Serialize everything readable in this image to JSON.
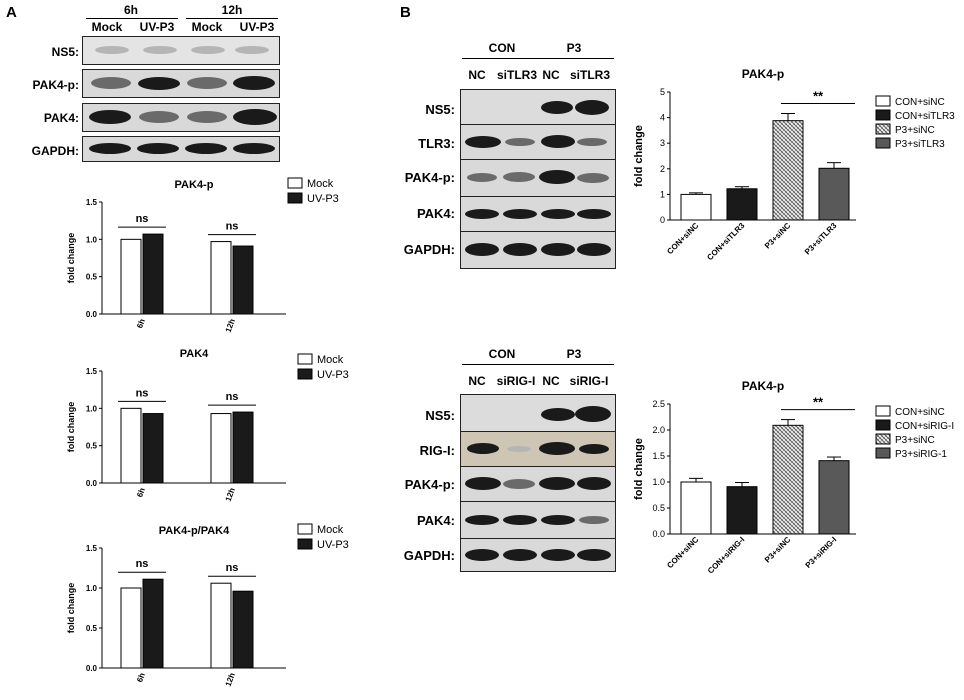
{
  "panelA": {
    "letter": "A",
    "timepoints": [
      "6h",
      "12h"
    ],
    "lanes": [
      "Mock",
      "UV-P3",
      "Mock",
      "UV-P3"
    ],
    "blots": [
      "NS5:",
      "PAK4-p:",
      "PAK4:",
      "GAPDH:"
    ]
  },
  "panelB": {
    "letter": "B",
    "top": {
      "groups": [
        "CON",
        "P3"
      ],
      "lanes": [
        "NC",
        "siTLR3",
        "NC",
        "siTLR3"
      ],
      "blots": [
        "NS5:",
        "TLR3:",
        "PAK4-p:",
        "PAK4:",
        "GAPDH:"
      ]
    },
    "bottom": {
      "groups": [
        "CON",
        "P3"
      ],
      "lanes": [
        "NC",
        "siRIG-I",
        "NC",
        "siRIG-I"
      ],
      "blots": [
        "NS5:",
        "RIG-I:",
        "PAK4-p:",
        "PAK4:",
        "GAPDH:"
      ]
    }
  },
  "chart_data": [
    {
      "type": "bar",
      "title": "PAK4-p",
      "ylabel": "fold change",
      "categories": [
        "6h",
        "12h"
      ],
      "series": [
        {
          "name": "Mock",
          "values": [
            1.0,
            0.97
          ]
        },
        {
          "name": "UV-P3",
          "values": [
            1.07,
            0.91
          ]
        }
      ],
      "ylim": [
        0,
        1.5
      ],
      "yticks": [
        "0.0",
        "0.5",
        "1.0",
        "1.5"
      ],
      "annotations": [
        "ns",
        "ns"
      ],
      "legend": "right"
    },
    {
      "type": "bar",
      "title": "PAK4",
      "ylabel": "fold change",
      "categories": [
        "6h",
        "12h"
      ],
      "series": [
        {
          "name": "Mock",
          "values": [
            1.0,
            0.93
          ]
        },
        {
          "name": "UV-P3",
          "values": [
            0.93,
            0.95
          ]
        }
      ],
      "ylim": [
        0,
        1.5
      ],
      "yticks": [
        "0.0",
        "0.5",
        "1.0",
        "1.5"
      ],
      "annotations": [
        "ns",
        "ns"
      ],
      "legend": "right"
    },
    {
      "type": "bar",
      "title": "PAK4-p/PAK4",
      "ylabel": "fold change",
      "categories": [
        "6h",
        "12h"
      ],
      "series": [
        {
          "name": "Mock",
          "values": [
            1.0,
            1.06
          ]
        },
        {
          "name": "UV-P3",
          "values": [
            1.11,
            0.96
          ]
        }
      ],
      "ylim": [
        0,
        1.5
      ],
      "yticks": [
        "0.0",
        "0.5",
        "1.0",
        "1.5"
      ],
      "annotations": [
        "ns",
        "ns"
      ],
      "legend": "right"
    },
    {
      "type": "bar",
      "title": "PAK4-p",
      "ylabel": "fold change",
      "categories": [
        "CON+siNC",
        "CON+siTLR3",
        "P3+siNC",
        "P3+siTLR3"
      ],
      "values": [
        1.0,
        1.22,
        3.88,
        2.02
      ],
      "errors": [
        0.06,
        0.08,
        0.28,
        0.22
      ],
      "ylim": [
        0,
        5
      ],
      "yticks": [
        "0",
        "1",
        "2",
        "3",
        "4",
        "5"
      ],
      "legend_entries": [
        "CON+siNC",
        "CON+siTLR3",
        "P3+siNC",
        "P3+siTLR3"
      ],
      "annotations": [
        "**"
      ],
      "legend": "right"
    },
    {
      "type": "bar",
      "title": "PAK4-p",
      "ylabel": "fold change",
      "categories": [
        "CON+siNC",
        "CON+siRIG-I",
        "P3+siNC",
        "P3+siRIG-I"
      ],
      "values": [
        1.0,
        0.91,
        2.09,
        1.41
      ],
      "errors": [
        0.07,
        0.08,
        0.11,
        0.07
      ],
      "ylim": [
        0,
        2.5
      ],
      "yticks": [
        "0.0",
        "0.5",
        "1.0",
        "1.5",
        "2.0",
        "2.5"
      ],
      "legend_entries": [
        "CON+siNC",
        "CON+siRIG-I",
        "P3+siNC",
        "P3+siRIG-1"
      ],
      "annotations": [
        "**"
      ],
      "legend": "right"
    }
  ]
}
